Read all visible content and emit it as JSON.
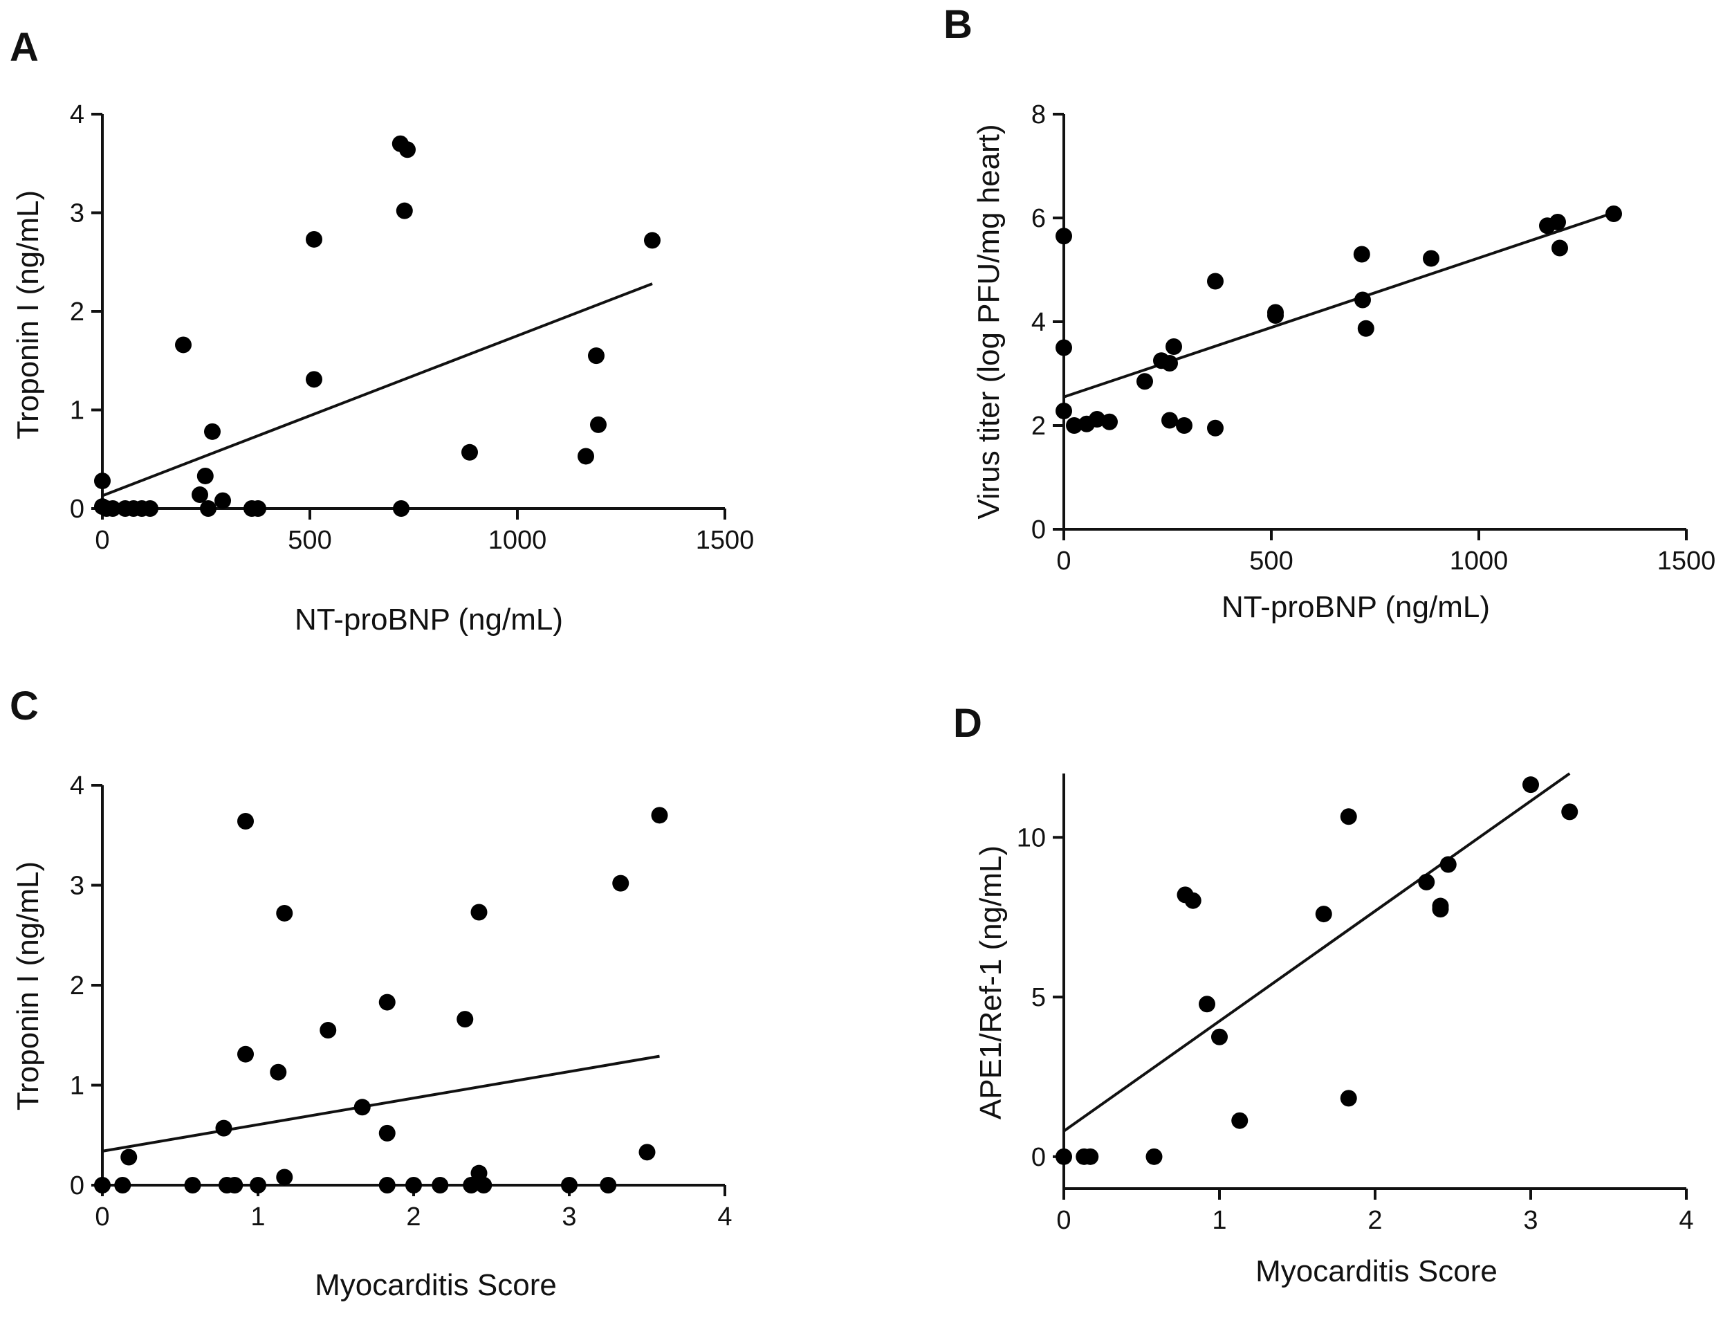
{
  "figure": {
    "panels": [
      "A",
      "B",
      "C",
      "D"
    ]
  },
  "chart_data": [
    {
      "type": "scatter",
      "panel": "A",
      "xlabel": "NT-proBNP (ng/mL)",
      "ylabel": "Troponin I (ng/mL)",
      "xlim": [
        0,
        1500
      ],
      "ylim": [
        0,
        4
      ],
      "xticks": [
        0,
        500,
        1000,
        1500
      ],
      "yticks": [
        0,
        1,
        2,
        3,
        4
      ],
      "points": [
        [
          0,
          0.28
        ],
        [
          0,
          0.02
        ],
        [
          10,
          0.0
        ],
        [
          25,
          0.0
        ],
        [
          55,
          0.0
        ],
        [
          75,
          0.0
        ],
        [
          95,
          0.0
        ],
        [
          115,
          0.0
        ],
        [
          195,
          1.66
        ],
        [
          235,
          0.14
        ],
        [
          248,
          0.33
        ],
        [
          255,
          0.0
        ],
        [
          265,
          0.78
        ],
        [
          290,
          0.08
        ],
        [
          360,
          0.0
        ],
        [
          375,
          0.0
        ],
        [
          510,
          2.73
        ],
        [
          510,
          1.31
        ],
        [
          718,
          3.7
        ],
        [
          735,
          3.64
        ],
        [
          728,
          3.02
        ],
        [
          720,
          0.0
        ],
        [
          885,
          0.57
        ],
        [
          1165,
          0.53
        ],
        [
          1190,
          1.55
        ],
        [
          1195,
          0.85
        ],
        [
          1325,
          2.72
        ]
      ],
      "fit": {
        "x": [
          0,
          1325
        ],
        "y": [
          0.13,
          2.28
        ]
      }
    },
    {
      "type": "scatter",
      "panel": "B",
      "xlabel": "NT-proBNP (ng/mL)",
      "ylabel": "Virus titer (log PFU/mg heart)",
      "xlim": [
        0,
        1500
      ],
      "ylim": [
        0,
        8
      ],
      "xticks": [
        0,
        500,
        1000,
        1500
      ],
      "yticks": [
        0,
        2,
        4,
        6,
        8
      ],
      "points": [
        [
          0,
          5.65
        ],
        [
          0,
          3.5
        ],
        [
          0,
          2.28
        ],
        [
          25,
          2.0
        ],
        [
          55,
          2.03
        ],
        [
          80,
          2.12
        ],
        [
          110,
          2.07
        ],
        [
          195,
          2.85
        ],
        [
          235,
          3.25
        ],
        [
          255,
          3.2
        ],
        [
          265,
          3.52
        ],
        [
          255,
          2.1
        ],
        [
          290,
          2.0
        ],
        [
          365,
          4.78
        ],
        [
          365,
          1.95
        ],
        [
          510,
          4.18
        ],
        [
          510,
          4.12
        ],
        [
          718,
          5.3
        ],
        [
          720,
          4.42
        ],
        [
          728,
          3.87
        ],
        [
          885,
          5.22
        ],
        [
          1165,
          5.85
        ],
        [
          1190,
          5.92
        ],
        [
          1195,
          5.42
        ],
        [
          1325,
          6.08
        ]
      ],
      "fit": {
        "x": [
          0,
          1325
        ],
        "y": [
          2.55,
          6.1
        ]
      }
    },
    {
      "type": "scatter",
      "panel": "C",
      "xlabel": "Myocarditis Score",
      "ylabel": "Troponin I (ng/mL)",
      "xlim": [
        0,
        4
      ],
      "ylim": [
        0,
        4
      ],
      "xticks": [
        0,
        1,
        2,
        3,
        4
      ],
      "yticks": [
        0,
        1,
        2,
        3,
        4
      ],
      "points": [
        [
          0,
          0.0
        ],
        [
          0.13,
          0.0
        ],
        [
          0.17,
          0.28
        ],
        [
          0.58,
          0.0
        ],
        [
          0.78,
          0.57
        ],
        [
          0.8,
          0.0
        ],
        [
          0.85,
          0.0
        ],
        [
          0.92,
          3.64
        ],
        [
          0.92,
          1.31
        ],
        [
          1.0,
          0.0
        ],
        [
          1.13,
          1.13
        ],
        [
          1.17,
          2.72
        ],
        [
          1.17,
          0.08
        ],
        [
          1.45,
          1.55
        ],
        [
          1.67,
          0.78
        ],
        [
          1.83,
          1.83
        ],
        [
          1.83,
          0.52
        ],
        [
          1.83,
          0.0
        ],
        [
          2.0,
          0.0
        ],
        [
          2.17,
          0.0
        ],
        [
          2.33,
          1.66
        ],
        [
          2.37,
          0.0
        ],
        [
          2.42,
          2.73
        ],
        [
          2.42,
          0.12
        ],
        [
          2.45,
          0.0
        ],
        [
          3.0,
          0.0
        ],
        [
          3.25,
          0.0
        ],
        [
          3.33,
          3.02
        ],
        [
          3.5,
          0.33
        ],
        [
          3.58,
          3.7
        ]
      ],
      "fit": {
        "x": [
          0,
          3.58
        ],
        "y": [
          0.34,
          1.29
        ]
      }
    },
    {
      "type": "scatter",
      "panel": "D",
      "xlabel": "Myocarditis Score",
      "ylabel": "APE1/Ref-1 (ng/mL)",
      "xlim": [
        0,
        4
      ],
      "ylim": [
        -1,
        12
      ],
      "xticks": [
        0,
        1,
        2,
        3,
        4
      ],
      "yticks": [
        0,
        5,
        10
      ],
      "points": [
        [
          0,
          0.0
        ],
        [
          0.13,
          0.0
        ],
        [
          0.17,
          0.0
        ],
        [
          0.58,
          0.0
        ],
        [
          0.78,
          8.2
        ],
        [
          0.83,
          8.02
        ],
        [
          0.92,
          4.78
        ],
        [
          1.0,
          3.75
        ],
        [
          1.13,
          1.13
        ],
        [
          1.67,
          7.6
        ],
        [
          1.83,
          10.65
        ],
        [
          1.83,
          1.83
        ],
        [
          2.33,
          8.6
        ],
        [
          2.42,
          7.85
        ],
        [
          2.42,
          7.75
        ],
        [
          2.47,
          9.15
        ],
        [
          3.0,
          11.65
        ],
        [
          3.25,
          10.8
        ]
      ],
      "fit": {
        "x": [
          0,
          3.25
        ],
        "y": [
          0.8,
          12.0
        ]
      }
    }
  ]
}
